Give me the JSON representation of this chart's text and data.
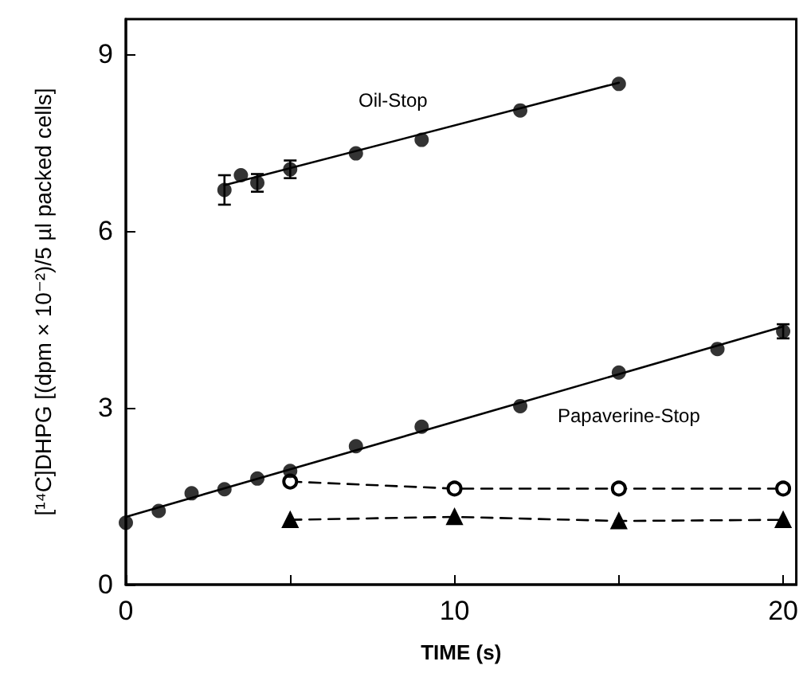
{
  "chart_data": {
    "type": "scatter",
    "xlabel": "TIME (s)",
    "ylabel": "[¹⁴C]DHPG [(dpm × 10⁻²)/5 µl packed cells]",
    "xlim": [
      0,
      20.4
    ],
    "xticks": [
      0,
      {
        "value": 5,
        "label": null
      },
      10,
      {
        "value": 15,
        "label": null
      },
      20
    ],
    "ylim": [
      0,
      9.6
    ],
    "yticks": [
      0,
      3,
      6,
      9
    ],
    "grid": false,
    "annotations": [
      "Oil-Stop",
      "Papaverine-Stop"
    ],
    "series": [
      {
        "marker": "circle",
        "color": "#000000",
        "x": [
          3,
          3.5,
          4,
          5,
          7,
          9,
          12,
          15
        ],
        "values": [
          6.7,
          6.95,
          6.82,
          7.05,
          7.32,
          7.55,
          8.05,
          8.5
        ],
        "errors": [
          0.25,
          null,
          0.15,
          0.15,
          null,
          null,
          null,
          null
        ]
      },
      {
        "type": "line",
        "marker": "none",
        "line_style": "solid",
        "color": "#000000",
        "x": [
          3,
          15
        ],
        "values": [
          6.78,
          8.52
        ]
      },
      {
        "marker": "circle",
        "color": "#000000",
        "x": [
          0,
          1,
          2,
          3,
          4,
          5,
          7,
          9,
          12,
          15,
          18,
          20
        ],
        "values": [
          1.05,
          1.25,
          1.55,
          1.62,
          1.8,
          1.93,
          2.35,
          2.68,
          3.03,
          3.6,
          4.0,
          4.3
        ],
        "errors": [
          null,
          null,
          null,
          null,
          null,
          null,
          null,
          null,
          null,
          null,
          null,
          0.12
        ]
      },
      {
        "type": "line",
        "marker": "none",
        "line_style": "solid",
        "color": "#000000",
        "x": [
          0,
          20
        ],
        "values": [
          1.15,
          4.38
        ]
      },
      {
        "type": "line",
        "marker": "circle",
        "line_style": "dashed",
        "color": "#000000",
        "x": [
          5,
          10,
          15,
          20
        ],
        "values": [
          1.75,
          1.63,
          1.63,
          1.63
        ]
      },
      {
        "type": "line",
        "marker": "triangle",
        "line_style": "dashed",
        "color": "#000000",
        "x": [
          5,
          10,
          15,
          20
        ],
        "values": [
          1.1,
          1.15,
          1.08,
          1.1
        ]
      }
    ]
  }
}
